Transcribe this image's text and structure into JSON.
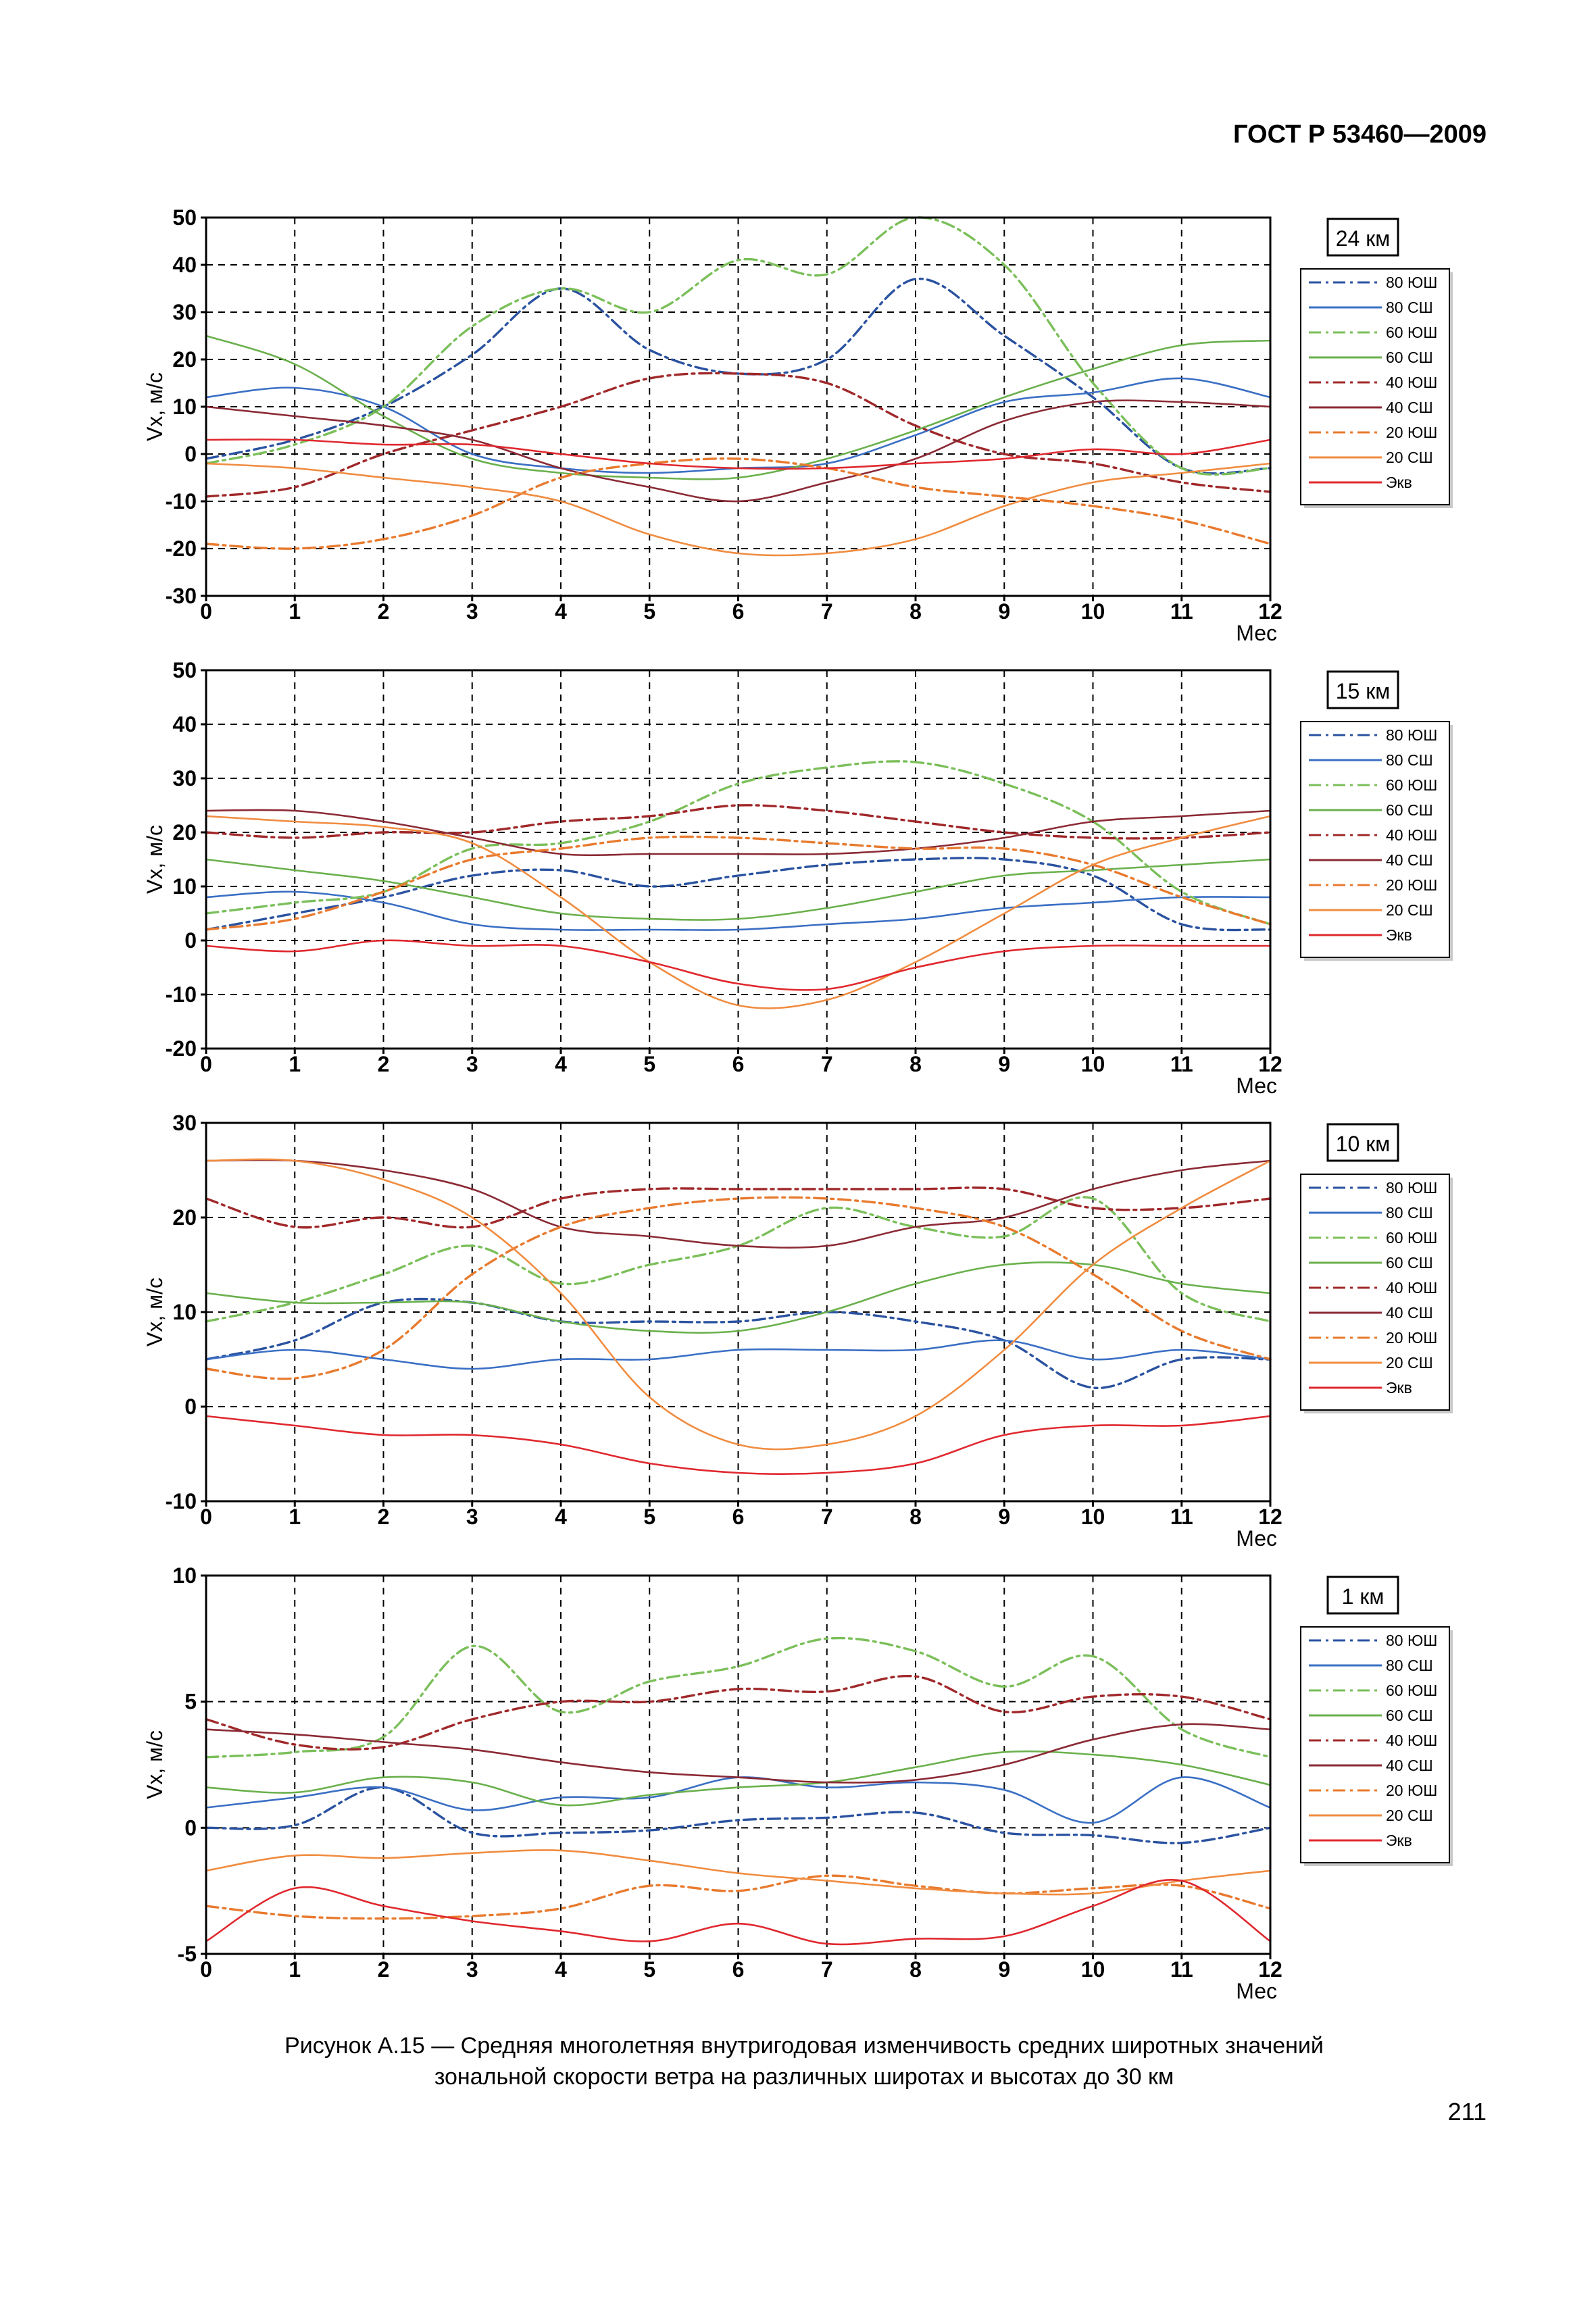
{
  "header": {
    "doc_id": "ГОСТ Р 53460—2009"
  },
  "caption": {
    "line1": "Рисунок  А.15  —  Средняя многолетняя внутригодовая изменчивость средних широтных значений",
    "line2": "зональной скорости ветра на различных широтах и высотах до 30 км"
  },
  "page_number": "211",
  "chart_data": [
    {
      "type": "line",
      "altitude_label": "24 км",
      "ylabel": "Vx, м/с",
      "xlabel": "Мес",
      "xlim": [
        0,
        12
      ],
      "ylim": [
        -30,
        50
      ],
      "yticks": [
        50,
        40,
        30,
        20,
        10,
        0,
        -10,
        -20,
        -30
      ],
      "xticks": [
        0,
        1,
        2,
        3,
        4,
        5,
        6,
        7,
        8,
        9,
        10,
        11,
        12
      ],
      "grid": true,
      "legend_position": "right",
      "x": [
        0,
        1,
        2,
        3,
        4,
        5,
        6,
        7,
        8,
        9,
        10,
        11,
        12
      ],
      "series": [
        {
          "name": "80 ЮШ",
          "color": "#2a52a0",
          "dash": "dashdot",
          "values": [
            -1,
            3,
            10,
            21,
            35,
            22,
            17,
            20,
            37,
            25,
            12,
            -3,
            -3
          ]
        },
        {
          "name": "80 СШ",
          "color": "#3a6fc4",
          "dash": "solid",
          "values": [
            12,
            14,
            10,
            0,
            -3,
            -4,
            -3,
            -2,
            4,
            11,
            13,
            16,
            12
          ]
        },
        {
          "name": "60 ЮШ",
          "color": "#7bbf5a",
          "dash": "dashdot",
          "values": [
            -2,
            2,
            10,
            27,
            35,
            30,
            41,
            38,
            50,
            40,
            15,
            -3,
            -3
          ]
        },
        {
          "name": "60 СШ",
          "color": "#6ab04c",
          "dash": "solid",
          "values": [
            25,
            19,
            8,
            -1,
            -4,
            -5,
            -5,
            -1,
            5,
            12,
            18,
            23,
            24
          ]
        },
        {
          "name": "40 ЮШ",
          "color": "#a0282a",
          "dash": "dashdot",
          "values": [
            -9,
            -7,
            0,
            5,
            10,
            16,
            17,
            15,
            6,
            0,
            -2,
            -6,
            -8
          ]
        },
        {
          "name": "40 СШ",
          "color": "#8b2a35",
          "dash": "solid",
          "values": [
            10,
            8,
            6,
            3,
            -3,
            -7,
            -10,
            -6,
            -1,
            7,
            11,
            11,
            10
          ]
        },
        {
          "name": "20 ЮШ",
          "color": "#e87a2e",
          "dash": "dashdot",
          "values": [
            -19,
            -20,
            -18,
            -13,
            -5,
            -2,
            -1,
            -3,
            -7,
            -9,
            -11,
            -14,
            -19
          ]
        },
        {
          "name": "20 СШ",
          "color": "#f08c40",
          "dash": "solid",
          "values": [
            -2,
            -3,
            -5,
            -7,
            -10,
            -17,
            -21,
            -21,
            -18,
            -11,
            -6,
            -4,
            -2
          ]
        },
        {
          "name": "Экв",
          "color": "#e0282e",
          "dash": "solid",
          "values": [
            3,
            3,
            2,
            2,
            0,
            -2,
            -3,
            -3,
            -2,
            -1,
            1,
            0,
            3
          ]
        }
      ]
    },
    {
      "type": "line",
      "altitude_label": "15 км",
      "ylabel": "Vx, м/с",
      "xlabel": "Мес",
      "xlim": [
        0,
        12
      ],
      "ylim": [
        -20,
        50
      ],
      "yticks": [
        50,
        40,
        30,
        20,
        10,
        0,
        -10,
        -20
      ],
      "xticks": [
        0,
        1,
        2,
        3,
        4,
        5,
        6,
        7,
        8,
        9,
        10,
        11,
        12
      ],
      "grid": true,
      "legend_position": "right",
      "x": [
        0,
        1,
        2,
        3,
        4,
        5,
        6,
        7,
        8,
        9,
        10,
        11,
        12
      ],
      "series": [
        {
          "name": "80 ЮШ",
          "color": "#2a52a0",
          "dash": "dashdot",
          "values": [
            2,
            5,
            8,
            12,
            13,
            10,
            12,
            14,
            15,
            15,
            12,
            3,
            2
          ]
        },
        {
          "name": "80 СШ",
          "color": "#3a6fc4",
          "dash": "solid",
          "values": [
            8,
            9,
            7,
            3,
            2,
            2,
            2,
            3,
            4,
            6,
            7,
            8,
            8
          ]
        },
        {
          "name": "60 ЮШ",
          "color": "#7bbf5a",
          "dash": "dashdot",
          "values": [
            5,
            7,
            9,
            17,
            18,
            22,
            29,
            32,
            33,
            29,
            22,
            9,
            3
          ]
        },
        {
          "name": "60 СШ",
          "color": "#6ab04c",
          "dash": "solid",
          "values": [
            15,
            13,
            11,
            8,
            5,
            4,
            4,
            6,
            9,
            12,
            13,
            14,
            15
          ]
        },
        {
          "name": "40 ЮШ",
          "color": "#a0282a",
          "dash": "dashdot",
          "values": [
            20,
            19,
            20,
            20,
            22,
            23,
            25,
            24,
            22,
            20,
            19,
            19,
            20
          ]
        },
        {
          "name": "40 СШ",
          "color": "#8b2a35",
          "dash": "solid",
          "values": [
            24,
            24,
            22,
            19,
            16,
            16,
            16,
            16,
            17,
            19,
            22,
            23,
            24
          ]
        },
        {
          "name": "20 ЮШ",
          "color": "#e87a2e",
          "dash": "dashdot",
          "values": [
            2,
            4,
            9,
            15,
            17,
            19,
            19,
            18,
            17,
            17,
            14,
            8,
            3
          ]
        },
        {
          "name": "20 СШ",
          "color": "#f08c40",
          "dash": "solid",
          "values": [
            23,
            22,
            21,
            18,
            8,
            -4,
            -12,
            -11,
            -4,
            5,
            14,
            19,
            23
          ]
        },
        {
          "name": "Экв",
          "color": "#e0282e",
          "dash": "solid",
          "values": [
            -1,
            -2,
            0,
            -1,
            -1,
            -4,
            -8,
            -9,
            -5,
            -2,
            -1,
            -1,
            -1
          ]
        }
      ]
    },
    {
      "type": "line",
      "altitude_label": "10 км",
      "ylabel": "Vx, м/с",
      "xlabel": "Мес",
      "xlim": [
        0,
        12
      ],
      "ylim": [
        -10,
        30
      ],
      "yticks": [
        30,
        20,
        10,
        0,
        -10
      ],
      "xticks": [
        0,
        1,
        2,
        3,
        4,
        5,
        6,
        7,
        8,
        9,
        10,
        11,
        12
      ],
      "grid": true,
      "legend_position": "right",
      "x": [
        0,
        1,
        2,
        3,
        4,
        5,
        6,
        7,
        8,
        9,
        10,
        11,
        12
      ],
      "series": [
        {
          "name": "80 ЮШ",
          "color": "#2a52a0",
          "dash": "dashdot",
          "values": [
            5,
            7,
            11,
            11,
            9,
            9,
            9,
            10,
            9,
            7,
            2,
            5,
            5
          ]
        },
        {
          "name": "80 СШ",
          "color": "#3a6fc4",
          "dash": "solid",
          "values": [
            5,
            6,
            5,
            4,
            5,
            5,
            6,
            6,
            6,
            7,
            5,
            6,
            5
          ]
        },
        {
          "name": "60 ЮШ",
          "color": "#7bbf5a",
          "dash": "dashdot",
          "values": [
            9,
            11,
            14,
            17,
            13,
            15,
            17,
            21,
            19,
            18,
            22,
            12,
            9
          ]
        },
        {
          "name": "60 СШ",
          "color": "#6ab04c",
          "dash": "solid",
          "values": [
            12,
            11,
            11,
            11,
            9,
            8,
            8,
            10,
            13,
            15,
            15,
            13,
            12
          ]
        },
        {
          "name": "40 ЮШ",
          "color": "#a0282a",
          "dash": "dashdot",
          "values": [
            22,
            19,
            20,
            19,
            22,
            23,
            23,
            23,
            23,
            23,
            21,
            21,
            22
          ]
        },
        {
          "name": "40 СШ",
          "color": "#8b2a35",
          "dash": "solid",
          "values": [
            26,
            26,
            25,
            23,
            19,
            18,
            17,
            17,
            19,
            20,
            23,
            25,
            26
          ]
        },
        {
          "name": "20 ЮШ",
          "color": "#e87a2e",
          "dash": "dashdot",
          "values": [
            4,
            3,
            6,
            14,
            19,
            21,
            22,
            22,
            21,
            19,
            14,
            8,
            5
          ]
        },
        {
          "name": "20 СШ",
          "color": "#f08c40",
          "dash": "solid",
          "values": [
            26,
            26,
            24,
            20,
            12,
            1,
            -4,
            -4,
            -1,
            6,
            15,
            21,
            26
          ]
        },
        {
          "name": "Экв",
          "color": "#e0282e",
          "dash": "solid",
          "values": [
            -1,
            -2,
            -3,
            -3,
            -4,
            -6,
            -7,
            -7,
            -6,
            -3,
            -2,
            -2,
            -1
          ]
        }
      ]
    },
    {
      "type": "line",
      "altitude_label": "1 км",
      "ylabel": "Vx, м/с",
      "xlabel": "Мес",
      "xlim": [
        0,
        12
      ],
      "ylim": [
        -5,
        10
      ],
      "yticks": [
        10,
        5,
        0,
        -5
      ],
      "xticks": [
        0,
        1,
        2,
        3,
        4,
        5,
        6,
        7,
        8,
        9,
        10,
        11,
        12
      ],
      "grid": true,
      "legend_position": "right",
      "x": [
        0,
        1,
        2,
        3,
        4,
        5,
        6,
        7,
        8,
        9,
        10,
        11,
        12
      ],
      "series": [
        {
          "name": "80 ЮШ",
          "color": "#2a52a0",
          "dash": "dashdot",
          "values": [
            0,
            0.1,
            1.6,
            -0.2,
            -0.2,
            -0.1,
            0.3,
            0.4,
            0.6,
            -0.2,
            -0.3,
            -0.6,
            0
          ]
        },
        {
          "name": "80 СШ",
          "color": "#3a6fc4",
          "dash": "solid",
          "values": [
            0.8,
            1.2,
            1.6,
            0.7,
            1.2,
            1.2,
            2.0,
            1.6,
            1.8,
            1.5,
            0.2,
            2.0,
            0.8
          ]
        },
        {
          "name": "60 ЮШ",
          "color": "#7bbf5a",
          "dash": "dashdot",
          "values": [
            2.8,
            3.0,
            3.6,
            7.2,
            4.6,
            5.8,
            6.4,
            7.5,
            7.0,
            5.6,
            6.8,
            3.9,
            2.8
          ]
        },
        {
          "name": "60 СШ",
          "color": "#6ab04c",
          "dash": "solid",
          "values": [
            1.6,
            1.4,
            2.0,
            1.8,
            0.9,
            1.3,
            1.6,
            1.8,
            2.4,
            3.0,
            2.9,
            2.5,
            1.7
          ]
        },
        {
          "name": "40 ЮШ",
          "color": "#a0282a",
          "dash": "dashdot",
          "values": [
            4.3,
            3.3,
            3.2,
            4.3,
            5.0,
            5.0,
            5.5,
            5.4,
            6.0,
            4.6,
            5.2,
            5.2,
            4.3
          ]
        },
        {
          "name": "40 СШ",
          "color": "#8b2a35",
          "dash": "solid",
          "values": [
            3.9,
            3.7,
            3.4,
            3.1,
            2.6,
            2.2,
            2.0,
            1.8,
            1.9,
            2.5,
            3.5,
            4.1,
            3.9
          ]
        },
        {
          "name": "20 ЮШ",
          "color": "#e87a2e",
          "dash": "dashdot",
          "values": [
            -3.1,
            -3.5,
            -3.6,
            -3.5,
            -3.2,
            -2.3,
            -2.5,
            -1.9,
            -2.3,
            -2.6,
            -2.4,
            -2.3,
            -3.2
          ]
        },
        {
          "name": "20 СШ",
          "color": "#f08c40",
          "dash": "solid",
          "values": [
            -1.7,
            -1.1,
            -1.2,
            -1.0,
            -0.9,
            -1.3,
            -1.8,
            -2.1,
            -2.4,
            -2.6,
            -2.6,
            -2.1,
            -1.7
          ]
        },
        {
          "name": "Экв",
          "color": "#e0282e",
          "dash": "solid",
          "values": [
            -4.5,
            -2.4,
            -3.1,
            -3.7,
            -4.1,
            -4.5,
            -3.8,
            -4.6,
            -4.4,
            -4.3,
            -3.1,
            -2.1,
            -4.5
          ]
        }
      ]
    }
  ]
}
